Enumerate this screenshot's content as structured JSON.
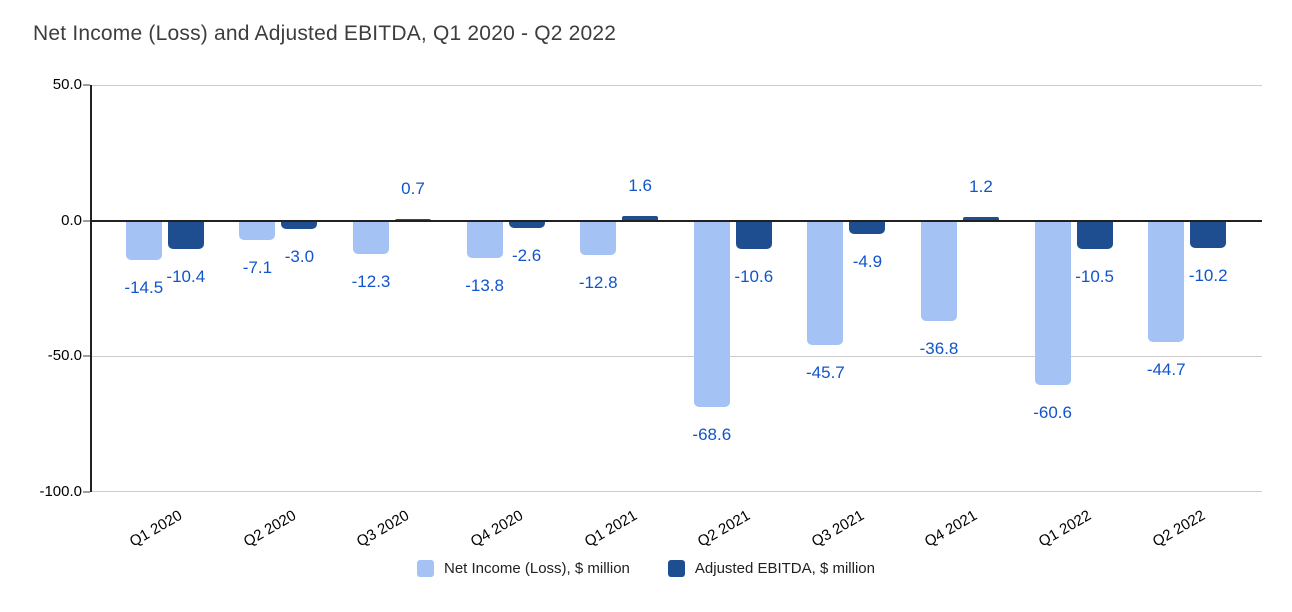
{
  "title": "Net Income (Loss) and Adjusted EBITDA, Q1 2020 - Q2 2022",
  "colors": {
    "background": "#ffffff",
    "title_text": "#3d3d3d",
    "axis_line": "#212121",
    "gridline": "#cccccc",
    "data_label": "#1155cc",
    "net_income_bar": "#a4c2f4",
    "adjusted_ebitda_bar": "#1e4e8f"
  },
  "chart_data": {
    "type": "bar",
    "title": "Net Income (Loss) and Adjusted EBITDA, Q1 2020 - Q2 2022",
    "categories": [
      "Q1 2020",
      "Q2 2020",
      "Q3 2020",
      "Q4 2020",
      "Q1 2021",
      "Q2 2021",
      "Q3 2021",
      "Q4 2021",
      "Q1 2022",
      "Q2 2022"
    ],
    "series": [
      {
        "name": "Net Income (Loss), $ million",
        "color": "#a4c2f4",
        "values": [
          -14.5,
          -7.1,
          -12.3,
          -13.8,
          -12.8,
          -68.6,
          -45.7,
          -36.8,
          -60.6,
          -44.7
        ]
      },
      {
        "name": "Adjusted EBITDA, $ million",
        "color": "#1e4e8f",
        "values": [
          -10.4,
          -3.0,
          0.7,
          -2.6,
          1.6,
          -10.6,
          -4.9,
          1.2,
          -10.5,
          -10.2
        ]
      }
    ],
    "xlabel": "",
    "ylabel": "",
    "ylim": [
      -100,
      50
    ],
    "yticks": [
      50.0,
      0.0,
      -50.0,
      -100.0
    ],
    "ytick_labels": [
      "50.0",
      "0.0",
      "-50.0",
      "-100.0"
    ],
    "grid": true,
    "data_labels": true,
    "legend_position": "bottom"
  }
}
